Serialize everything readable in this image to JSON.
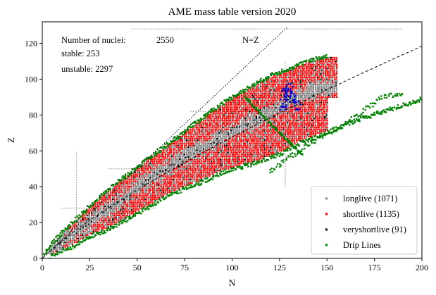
{
  "chart_data": {
    "type": "scatter",
    "title": "AME mass table version 2020",
    "xlabel": "N",
    "ylabel": "Z",
    "xlim": [
      0,
      200
    ],
    "ylim": [
      0,
      132
    ],
    "xticks": [
      "0",
      "25",
      "50",
      "75",
      "100",
      "125",
      "150",
      "175",
      "200"
    ],
    "yticks": [
      "0",
      "20",
      "40",
      "60",
      "80",
      "100",
      "120"
    ],
    "grid": false,
    "legend_placement": "lower-right",
    "annotations": {
      "nuclei_label": "Number of nuclei:",
      "nuclei_value": "2550",
      "stable": "stable: 253",
      "unstable": "unstable: 2297",
      "line_label": "N=Z"
    },
    "lines": [
      {
        "label": "N=Z",
        "style": "dotted",
        "x": [
          0,
          129
        ],
        "y": [
          0,
          129
        ]
      },
      {
        "style": "dashed",
        "x": [
          0,
          5,
          10,
          20,
          30,
          40,
          50,
          60,
          70,
          80,
          90,
          100,
          110,
          120,
          130,
          140,
          150,
          160,
          170,
          180,
          190,
          200
        ],
        "y": [
          0,
          5,
          9.5,
          17.5,
          24.8,
          31.6,
          38.2,
          44.5,
          50.5,
          56.4,
          62.1,
          67.7,
          73.1,
          78.5,
          83.8,
          89,
          94.1,
          99.1,
          104,
          108.9,
          113.7,
          118.4
        ]
      }
    ],
    "series": [
      {
        "name": "longlive (1071)",
        "color": "#808080"
      },
      {
        "name": "shortlive (1135)",
        "color": "#ff0000"
      },
      {
        "name": "veryshortlive (91)",
        "color": "#000000"
      },
      {
        "name": "Drip Lines",
        "color": "#008000"
      }
    ],
    "regions": {
      "stable_valley": [
        [
          2,
          2
        ],
        [
          10,
          9
        ],
        [
          20,
          16
        ],
        [
          30,
          24
        ],
        [
          40,
          31
        ],
        [
          50,
          40
        ],
        [
          60,
          47
        ],
        [
          70,
          53
        ],
        [
          80,
          59
        ],
        [
          90,
          65
        ],
        [
          100,
          71
        ],
        [
          110,
          76
        ],
        [
          120,
          81
        ],
        [
          126,
          85
        ],
        [
          130,
          88
        ],
        [
          140,
          92
        ],
        [
          145,
          95
        ]
      ],
      "proton_drip": [
        [
          1,
          3
        ],
        [
          10,
          14
        ],
        [
          20,
          24
        ],
        [
          30,
          34
        ],
        [
          40,
          43
        ],
        [
          50,
          51
        ],
        [
          60,
          59
        ],
        [
          70,
          67
        ],
        [
          80,
          75
        ],
        [
          90,
          83
        ],
        [
          100,
          90
        ],
        [
          110,
          96
        ],
        [
          120,
          102
        ],
        [
          130,
          106
        ],
        [
          140,
          110
        ],
        [
          150,
          113
        ]
      ],
      "neutron_drip": [
        [
          4,
          1
        ],
        [
          15,
          6
        ],
        [
          25,
          12
        ],
        [
          35,
          16
        ],
        [
          45,
          22
        ],
        [
          55,
          28
        ],
        [
          65,
          34
        ],
        [
          75,
          39
        ],
        [
          85,
          43
        ],
        [
          95,
          48
        ],
        [
          105,
          51
        ],
        [
          115,
          54
        ],
        [
          125,
          58
        ],
        [
          135,
          64
        ],
        [
          150,
          70
        ],
        [
          165,
          77
        ],
        [
          180,
          82
        ],
        [
          195,
          87
        ],
        [
          200,
          89
        ]
      ],
      "neutron_drip_upper": [
        [
          120,
          48
        ],
        [
          128,
          55
        ],
        [
          140,
          63
        ],
        [
          150,
          70
        ],
        [
          160,
          75
        ],
        [
          170,
          83
        ],
        [
          180,
          90
        ],
        [
          190,
          92
        ]
      ],
      "alpha_chain": [
        [
          107,
          90
        ],
        [
          115,
          81
        ],
        [
          121,
          74
        ],
        [
          127,
          68
        ],
        [
          133,
          62
        ],
        [
          137,
          58
        ]
      ],
      "heavy_blue_cluster": [
        [
          127,
          86
        ],
        [
          128,
          92
        ],
        [
          130,
          95
        ],
        [
          132,
          90
        ],
        [
          134,
          86
        ]
      ],
      "dotted_grid_lines": [
        {
          "x": [
            47,
            190
          ],
          "y": [
            128,
            128
          ]
        },
        {
          "x": [
            128,
            128
          ],
          "y": [
            40,
            110
          ]
        },
        {
          "x": [
            78,
            128
          ],
          "y": [
            82,
            82
          ]
        },
        {
          "x": [
            35,
            90
          ],
          "y": [
            50,
            50
          ]
        },
        {
          "x": [
            10,
            60
          ],
          "y": [
            28,
            28
          ]
        },
        {
          "x": [
            18,
            18
          ],
          "y": [
            20,
            60
          ]
        }
      ]
    }
  }
}
